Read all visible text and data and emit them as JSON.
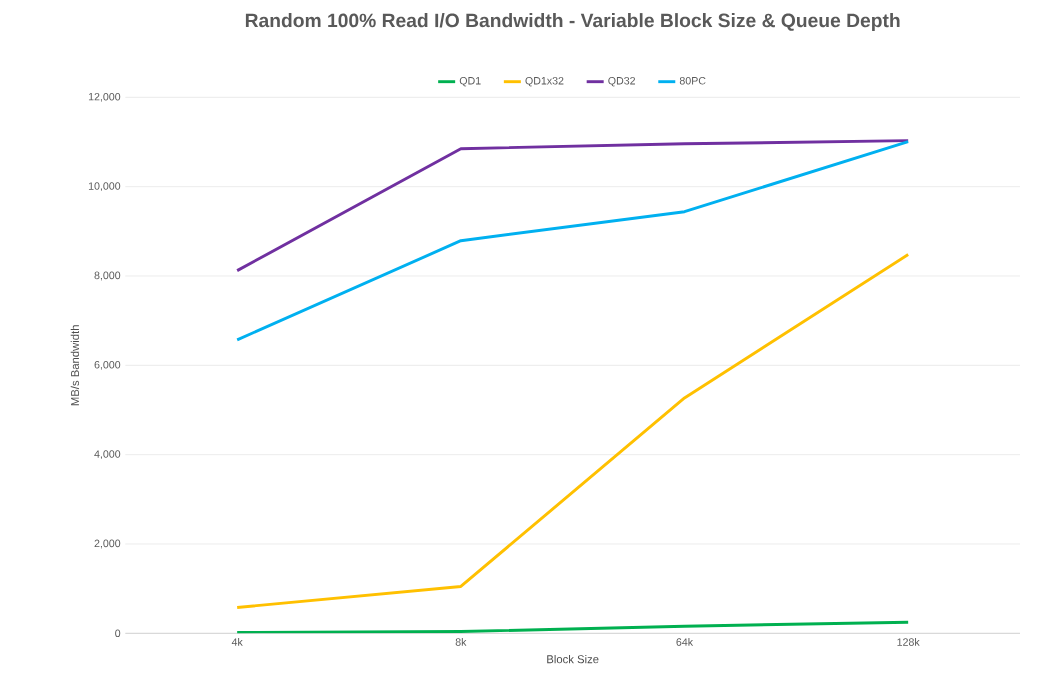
{
  "chart_data": {
    "type": "line",
    "title": "Random 100% Read I/O Bandwidth - Variable Block Size & Queue Depth",
    "xlabel": "Block Size",
    "ylabel": "MB/s Bandwidth",
    "categories": [
      "4k",
      "8k",
      "64k",
      "128k"
    ],
    "series": [
      {
        "name": "QD1",
        "color": "#00b050",
        "values": [
          20,
          40,
          160,
          250
        ]
      },
      {
        "name": "QD1x32",
        "color": "#ffc000",
        "values": [
          580,
          1050,
          5270,
          8480
        ]
      },
      {
        "name": "QD32",
        "color": "#7030a0",
        "values": [
          8120,
          10850,
          10960,
          11030
        ]
      },
      {
        "name": "80PC",
        "color": "#00b0f0",
        "values": [
          6570,
          8790,
          9440,
          11010
        ]
      }
    ],
    "ylim": [
      0,
      12000
    ],
    "yticks": [
      {
        "value": 0,
        "label": "0"
      },
      {
        "value": 2000,
        "label": "2,000"
      },
      {
        "value": 4000,
        "label": "4,000"
      },
      {
        "value": 6000,
        "label": "6,000"
      },
      {
        "value": 8000,
        "label": "8,000"
      },
      {
        "value": 10000,
        "label": "10,000"
      },
      {
        "value": 12000,
        "label": "12,000"
      }
    ],
    "grid": "y",
    "legend": "top",
    "marker": "none",
    "line_style": "solid"
  }
}
